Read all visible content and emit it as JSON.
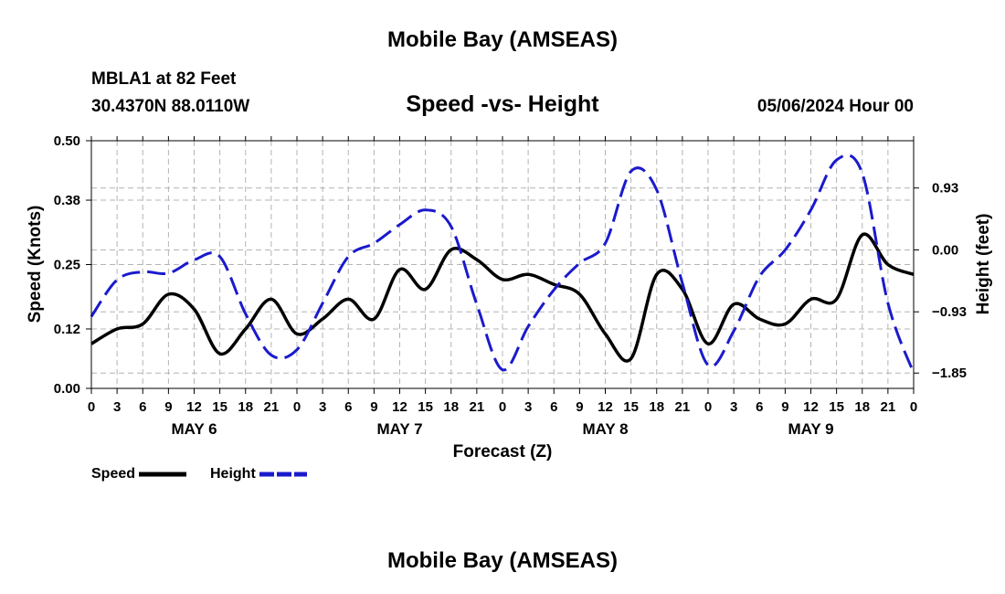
{
  "page": {
    "title_top": "Mobile Bay (AMSEAS)",
    "title_bottom": "Mobile Bay (AMSEAS)",
    "station_line": "MBLA1 at 82 Feet",
    "coords_line": "30.4370N  88.0110W",
    "subtitle": "Speed -vs- Height",
    "run_date": "05/06/2024 Hour 00"
  },
  "chart_data": {
    "type": "line",
    "title": "Speed -vs- Height",
    "xlabel": "Forecast (Z)",
    "ylabel_left": "Speed (Knots)",
    "ylabel_right": "Height (feet)",
    "x_hours": [
      0,
      96
    ],
    "x_tick_labels": [
      "0",
      "3",
      "6",
      "9",
      "12",
      "15",
      "18",
      "21",
      "0",
      "3",
      "6",
      "9",
      "12",
      "15",
      "18",
      "21",
      "0",
      "3",
      "6",
      "9",
      "12",
      "15",
      "18",
      "21",
      "0",
      "3",
      "6",
      "9",
      "12",
      "15",
      "18",
      "21",
      "0"
    ],
    "day_labels": [
      {
        "hour": 12,
        "label": "MAY 6"
      },
      {
        "hour": 36,
        "label": "MAY 7"
      },
      {
        "hour": 60,
        "label": "MAY 8"
      },
      {
        "hour": 84,
        "label": "MAY 9"
      }
    ],
    "y_left": {
      "range": [
        0,
        0.5
      ],
      "ticks": [
        0,
        0.12,
        0.25,
        0.38,
        0.5
      ],
      "tick_labels": [
        "0.00",
        "0.12",
        "0.25",
        "0.38",
        "0.50"
      ]
    },
    "y_right": {
      "range": [
        -2.08,
        1.64
      ],
      "ticks": [
        -1.85,
        -0.93,
        0,
        0.93
      ],
      "tick_labels": [
        "−1.85",
        "−0.93",
        "0.00",
        "0.93"
      ]
    },
    "grid": true,
    "series": [
      {
        "name": "Speed",
        "color": "#000000",
        "dash": "solid",
        "axis": "left",
        "x": [
          0,
          3,
          6,
          9,
          12,
          15,
          18,
          21,
          24,
          27,
          30,
          33,
          36,
          39,
          42,
          45,
          48,
          51,
          54,
          57,
          60,
          63,
          66,
          69,
          72,
          75,
          78,
          81,
          84,
          87,
          90,
          93,
          96
        ],
        "values": [
          0.09,
          0.12,
          0.13,
          0.19,
          0.16,
          0.07,
          0.12,
          0.18,
          0.11,
          0.14,
          0.18,
          0.14,
          0.24,
          0.2,
          0.28,
          0.26,
          0.22,
          0.23,
          0.21,
          0.19,
          0.11,
          0.06,
          0.23,
          0.2,
          0.09,
          0.17,
          0.14,
          0.13,
          0.18,
          0.18,
          0.31,
          0.25,
          0.23
        ]
      },
      {
        "name": "Height",
        "color": "#1a1acc",
        "dash": "dashed",
        "axis": "right",
        "x": [
          0,
          3,
          6,
          9,
          12,
          15,
          18,
          21,
          24,
          27,
          30,
          33,
          36,
          39,
          42,
          45,
          48,
          51,
          54,
          57,
          60,
          63,
          66,
          69,
          72,
          75,
          78,
          81,
          84,
          87,
          90,
          93,
          96
        ],
        "values": [
          -1.0,
          -0.45,
          -0.33,
          -0.35,
          -0.15,
          -0.1,
          -0.96,
          -1.58,
          -1.5,
          -0.8,
          -0.1,
          0.1,
          0.38,
          0.6,
          0.35,
          -0.82,
          -1.8,
          -1.15,
          -0.6,
          -0.2,
          0.1,
          1.18,
          0.9,
          -0.5,
          -1.73,
          -1.22,
          -0.4,
          0.0,
          0.6,
          1.35,
          1.15,
          -0.8,
          -1.85
        ]
      }
    ]
  },
  "legend": {
    "speed_label": "Speed",
    "height_label": "Height"
  }
}
